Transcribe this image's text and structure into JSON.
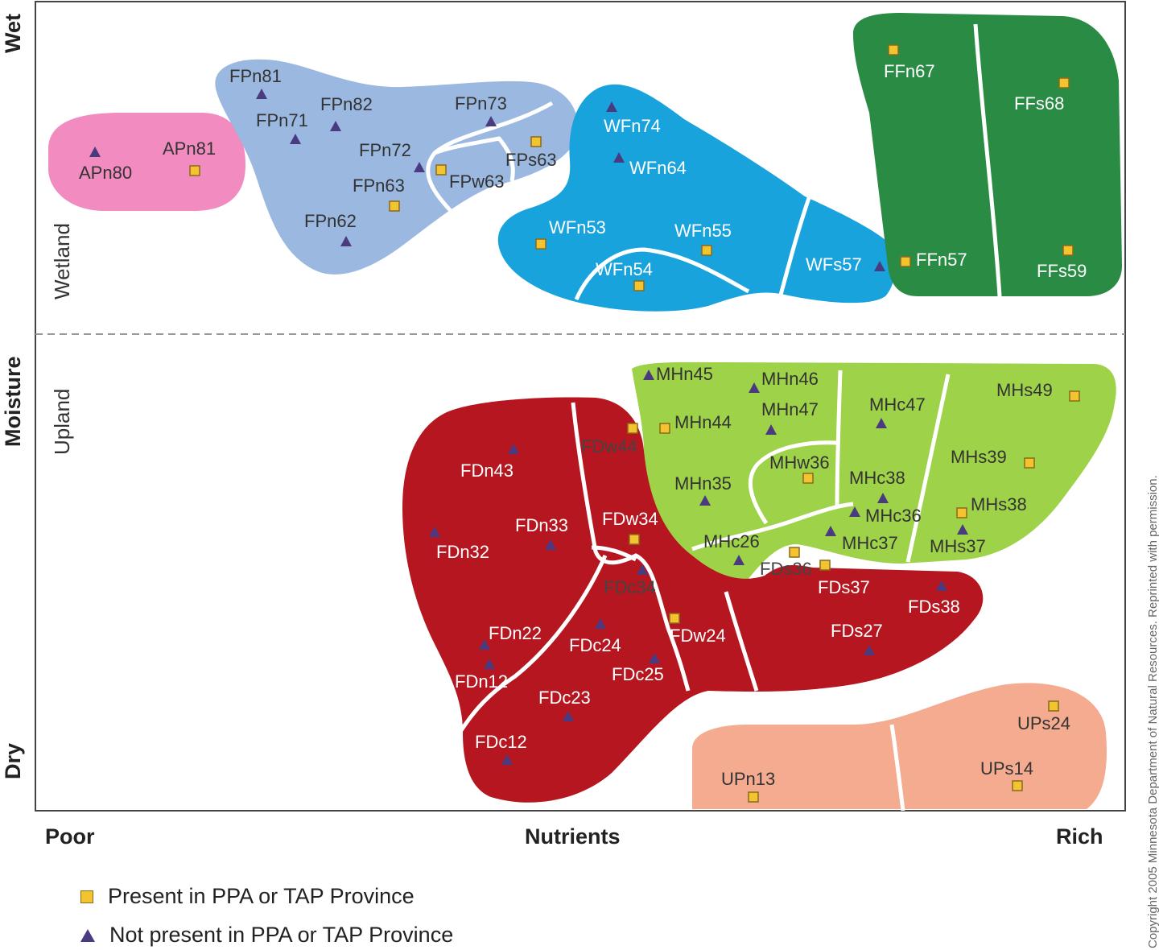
{
  "axes": {
    "y_top": "Wet",
    "y_middle": "Moisture",
    "y_bottom": "Dry",
    "x_left": "Poor",
    "x_middle": "Nutrients",
    "x_right": "Rich"
  },
  "zones": {
    "upper": "Wetland",
    "lower": "Upland"
  },
  "colors": {
    "AP": "#f28bbf",
    "FP": "#9ab8e0",
    "WF": "#19a3dd",
    "FF": "#2a8b45",
    "MH": "#9ed248",
    "FD": "#b5161f",
    "UP": "#f4ab90",
    "present_marker": "#f4c430",
    "absent_marker": "#4a3a80"
  },
  "units": [
    {
      "id": "APn80",
      "label": "APn80",
      "marker": "triangle"
    },
    {
      "id": "APn81",
      "label": "APn81",
      "marker": "square"
    },
    {
      "id": "FPn81",
      "label": "FPn81",
      "marker": "triangle"
    },
    {
      "id": "FPn71",
      "label": "FPn71",
      "marker": "triangle"
    },
    {
      "id": "FPn82",
      "label": "FPn82",
      "marker": "triangle"
    },
    {
      "id": "FPn73",
      "label": "FPn73",
      "marker": "triangle"
    },
    {
      "id": "FPn72",
      "label": "FPn72",
      "marker": "triangle"
    },
    {
      "id": "FPs63",
      "label": "FPs63",
      "marker": "square"
    },
    {
      "id": "FPw63",
      "label": "FPw63",
      "marker": "square"
    },
    {
      "id": "FPn63",
      "label": "FPn63",
      "marker": "square"
    },
    {
      "id": "FPn62",
      "label": "FPn62",
      "marker": "triangle"
    },
    {
      "id": "WFn74",
      "label": "WFn74",
      "marker": "triangle"
    },
    {
      "id": "WFn64",
      "label": "WFn64",
      "marker": "triangle"
    },
    {
      "id": "WFn53",
      "label": "WFn53",
      "marker": "square"
    },
    {
      "id": "WFn55",
      "label": "WFn55",
      "marker": "square"
    },
    {
      "id": "WFn54",
      "label": "WFn54",
      "marker": "square"
    },
    {
      "id": "WFs57",
      "label": "WFs57",
      "marker": "triangle"
    },
    {
      "id": "FFn67",
      "label": "FFn67",
      "marker": "square"
    },
    {
      "id": "FFs68",
      "label": "FFs68",
      "marker": "square"
    },
    {
      "id": "FFn57",
      "label": "FFn57",
      "marker": "square"
    },
    {
      "id": "FFs59",
      "label": "FFs59",
      "marker": "square"
    },
    {
      "id": "MHn45",
      "label": "MHn45",
      "marker": "triangle"
    },
    {
      "id": "MHn46",
      "label": "MHn46",
      "marker": "triangle"
    },
    {
      "id": "MHn47",
      "label": "MHn47",
      "marker": "triangle"
    },
    {
      "id": "MHc47",
      "label": "MHc47",
      "marker": "triangle"
    },
    {
      "id": "MHs49",
      "label": "MHs49",
      "marker": "square"
    },
    {
      "id": "MHn44",
      "label": "MHn44",
      "marker": "square"
    },
    {
      "id": "MHw36",
      "label": "MHw36",
      "marker": "square"
    },
    {
      "id": "MHs39",
      "label": "MHs39",
      "marker": "square"
    },
    {
      "id": "MHn35",
      "label": "MHn35",
      "marker": "triangle"
    },
    {
      "id": "MHc38",
      "label": "MHc38",
      "marker": "triangle"
    },
    {
      "id": "MHs38",
      "label": "MHs38",
      "marker": "square"
    },
    {
      "id": "MHc36",
      "label": "MHc36",
      "marker": "triangle"
    },
    {
      "id": "MHc37",
      "label": "MHc37",
      "marker": "triangle"
    },
    {
      "id": "MHs37",
      "label": "MHs37",
      "marker": "triangle"
    },
    {
      "id": "MHc26",
      "label": "MHc26",
      "marker": "triangle"
    },
    {
      "id": "FDw44",
      "label": "FDw44",
      "marker": "square"
    },
    {
      "id": "FDn43",
      "label": "FDn43",
      "marker": "triangle"
    },
    {
      "id": "FDw34",
      "label": "FDw34",
      "marker": "square"
    },
    {
      "id": "FDn33",
      "label": "FDn33",
      "marker": "triangle"
    },
    {
      "id": "FDn32",
      "label": "FDn32",
      "marker": "triangle"
    },
    {
      "id": "FDs36",
      "label": "FDs36",
      "marker": "square"
    },
    {
      "id": "FDs37",
      "label": "FDs37",
      "marker": "square"
    },
    {
      "id": "FDs38",
      "label": "FDs38",
      "marker": "triangle"
    },
    {
      "id": "FDc34",
      "label": "FDc34",
      "marker": "triangle"
    },
    {
      "id": "FDw24",
      "label": "FDw24",
      "marker": "square"
    },
    {
      "id": "FDs27",
      "label": "FDs27",
      "marker": "triangle"
    },
    {
      "id": "FDn22",
      "label": "FDn22",
      "marker": "triangle"
    },
    {
      "id": "FDc24",
      "label": "FDc24",
      "marker": "triangle"
    },
    {
      "id": "FDn12",
      "label": "FDn12",
      "marker": "triangle"
    },
    {
      "id": "FDc25",
      "label": "FDc25",
      "marker": "triangle"
    },
    {
      "id": "FDc23",
      "label": "FDc23",
      "marker": "triangle"
    },
    {
      "id": "FDc12",
      "label": "FDc12",
      "marker": "triangle"
    },
    {
      "id": "UPs24",
      "label": "UPs24",
      "marker": "square"
    },
    {
      "id": "UPs14",
      "label": "UPs14",
      "marker": "square"
    },
    {
      "id": "UPn13",
      "label": "UPn13",
      "marker": "square"
    }
  ],
  "legend": {
    "present": "Present in PPA or TAP Province",
    "absent": "Not present in PPA or TAP Province"
  },
  "copyright": "Copyright 2005 Minnesota Department of Natural Resources. Reprinted with permission."
}
